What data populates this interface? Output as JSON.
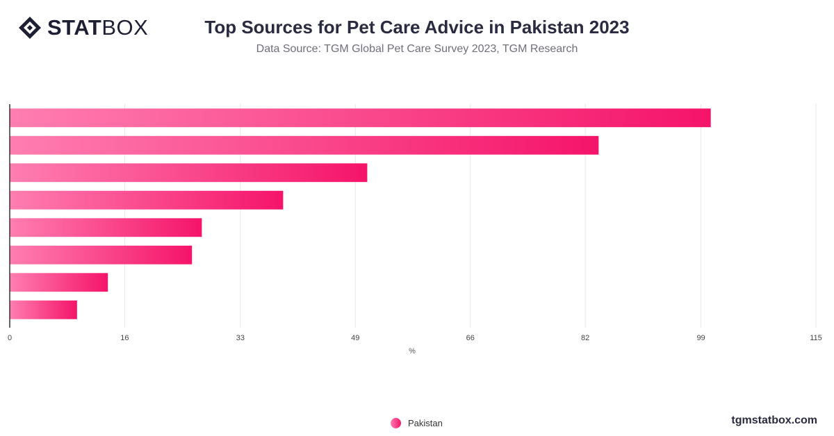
{
  "header": {
    "logo_bold": "STAT",
    "logo_light": "BOX",
    "title": "Top Sources for Pet Care Advice in Pakistan 2023",
    "subtitle": "Data Source: TGM Global Pet Care Survey 2023, TGM Research"
  },
  "footer": {
    "site": "tgmstatbox.com"
  },
  "colors": {
    "bar_start": "#ff7eb0",
    "bar_end": "#f5146a",
    "grid": "#e6e6e6",
    "axis": "#333333"
  },
  "chart_data": {
    "type": "bar",
    "orientation": "horizontal",
    "title": "Top Sources for Pet Care Advice in Pakistan 2023",
    "xlabel": "%",
    "ylabel": "",
    "xlim": [
      0,
      115
    ],
    "x_ticks": [
      "0",
      "16",
      "33",
      "49",
      "66",
      "82",
      "99",
      "115"
    ],
    "x_tick_values": [
      0,
      16.4,
      32.9,
      49.3,
      65.7,
      82.1,
      98.6,
      115
    ],
    "grid": true,
    "legend_position": "bottom-center",
    "series": [
      {
        "name": "Pakistan",
        "values": [
          100,
          84,
          51,
          39,
          27.4,
          26,
          14,
          9.6
        ]
      }
    ]
  }
}
